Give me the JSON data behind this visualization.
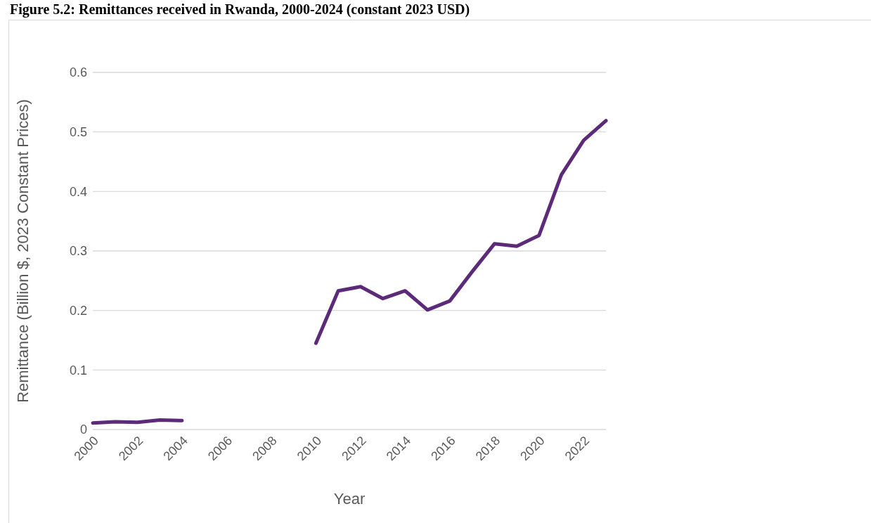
{
  "chart_data": {
    "type": "line",
    "title": "Figure 5.2: Remittances received in Rwanda, 2000-2024 (constant 2023 USD)",
    "xlabel": "Year",
    "ylabel": "Remittance (Billion $, 2023 Constant Prices)",
    "categories": [
      "2000",
      null,
      "2002",
      null,
      "2004",
      null,
      "2006",
      null,
      "2008",
      null,
      "2010",
      null,
      "2012",
      null,
      "2014",
      null,
      "2016",
      null,
      "2018",
      null,
      "2020",
      null,
      "2022",
      null
    ],
    "series": [
      {
        "color": "#5c2a78",
        "values": [
          0.011,
          0.013,
          0.012,
          0.016,
          0.015,
          null,
          null,
          null,
          null,
          null,
          0.145,
          0.233,
          0.24,
          0.22,
          0.233,
          0.201,
          0.216,
          0.265,
          0.312,
          0.308,
          0.326,
          0.428,
          0.486,
          0.519
        ]
      }
    ],
    "ylim": [
      0,
      0.6
    ],
    "yticks": [
      0,
      0.1,
      0.2,
      0.3,
      0.4,
      0.5,
      0.6
    ],
    "grid": "y",
    "legend": false,
    "marker": "none",
    "line_style": "solid"
  }
}
